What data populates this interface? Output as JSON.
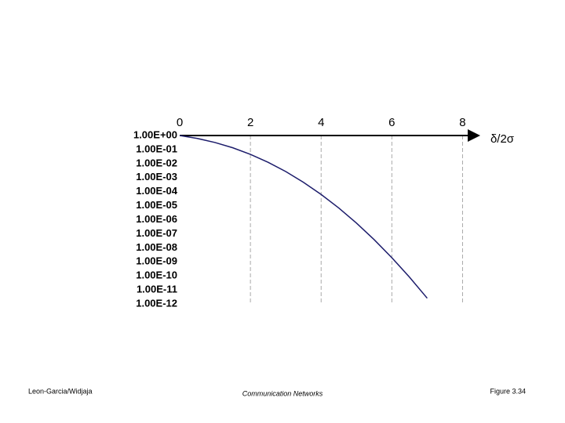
{
  "chart_data": {
    "type": "line",
    "x_label": "δ/2σ",
    "x": [
      0,
      0.5,
      1,
      1.5,
      2,
      2.5,
      3,
      3.5,
      4,
      4.5,
      5,
      5.5,
      6,
      6.5,
      7
    ],
    "series": [
      {
        "color": "#1c1c6b",
        "values": [
          1,
          0.617,
          0.317,
          0.134,
          0.0455,
          0.0124,
          0.0027,
          0.000465,
          6.33e-05,
          6.8e-06,
          5.73e-07,
          3.8e-08,
          1.97e-09,
          8e-11,
          2.56e-12
        ]
      }
    ],
    "xlim": [
      0,
      8.5
    ],
    "xticks": [
      0,
      2,
      4,
      6,
      8
    ],
    "ylim": [
      1e-12,
      1
    ],
    "log_y": true,
    "yticks": [
      {
        "value": 1,
        "label": "1.00E+00"
      },
      {
        "value": 0.1,
        "label": "1.00E-01"
      },
      {
        "value": 0.01,
        "label": "1.00E-02"
      },
      {
        "value": 0.001,
        "label": "1.00E-03"
      },
      {
        "value": 0.0001,
        "label": "1.00E-04"
      },
      {
        "value": 1e-05,
        "label": "1.00E-05"
      },
      {
        "value": 1e-06,
        "label": "1.00E-06"
      },
      {
        "value": 1e-07,
        "label": "1.00E-07"
      },
      {
        "value": 1e-08,
        "label": "1.00E-08"
      },
      {
        "value": 1e-09,
        "label": "1.00E-09"
      },
      {
        "value": 1e-10,
        "label": "1.00E-10"
      },
      {
        "value": 1e-11,
        "label": "1.00E-11"
      },
      {
        "value": 1e-12,
        "label": "1.00E-12"
      }
    ],
    "grid": true
  },
  "footer": {
    "left": "Leon-Garcia/Widjaja",
    "center": "Communication Networks",
    "right": "Figure 3.34"
  }
}
